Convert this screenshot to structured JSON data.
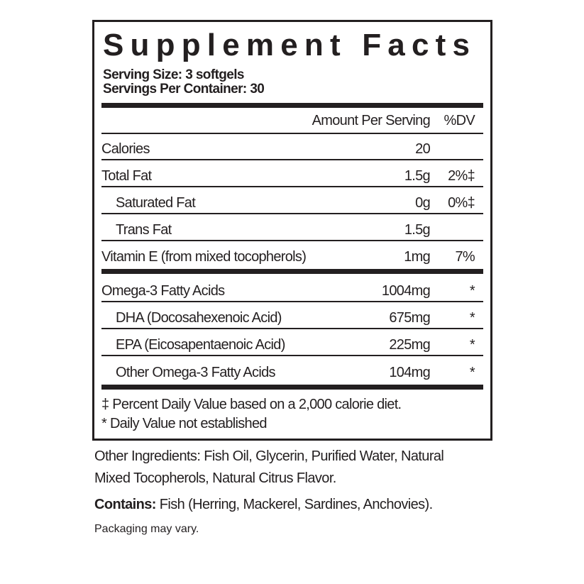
{
  "title": "Supplement Facts",
  "serving_size": "Serving Size: 3 softgels",
  "servings_per_container": "Servings Per Container: 30",
  "headers": {
    "amount": "Amount Per Serving",
    "dv": "%DV"
  },
  "rows": [
    {
      "name": "Calories",
      "amount": "20",
      "dv": ""
    },
    {
      "name": "Total Fat",
      "amount": "1.5g",
      "dv": "2%‡"
    },
    {
      "name": "Saturated Fat",
      "amount": "0g",
      "dv": "0%‡"
    },
    {
      "name": "Trans Fat",
      "amount": "1.5g",
      "dv": ""
    },
    {
      "name": "Vitamin E (from mixed tocopherols)",
      "amount": "1mg",
      "dv": "7%"
    },
    {
      "name": "Omega-3 Fatty Acids",
      "amount": "1004mg",
      "dv": "*"
    },
    {
      "name": "DHA (Docosahexenoic Acid)",
      "amount": "675mg",
      "dv": "*"
    },
    {
      "name": "EPA (Eicosapentaenoic Acid)",
      "amount": "225mg",
      "dv": "*"
    },
    {
      "name": "Other Omega-3 Fatty Acids",
      "amount": "104mg",
      "dv": "*"
    }
  ],
  "footnotes": [
    "‡ Percent Daily Value based on a 2,000 calorie diet.",
    "* Daily Value not established"
  ],
  "other_ingredients": [
    "Other Ingredients: Fish Oil, Glycerin, Purified Water, Natural",
    "Mixed Tocopherols, Natural Citrus Flavor."
  ],
  "contains_label": "Contains:",
  "contains_text": " Fish (Herring, Mackerel, Sardines, Anchovies).",
  "packaging_note": "Packaging may vary."
}
